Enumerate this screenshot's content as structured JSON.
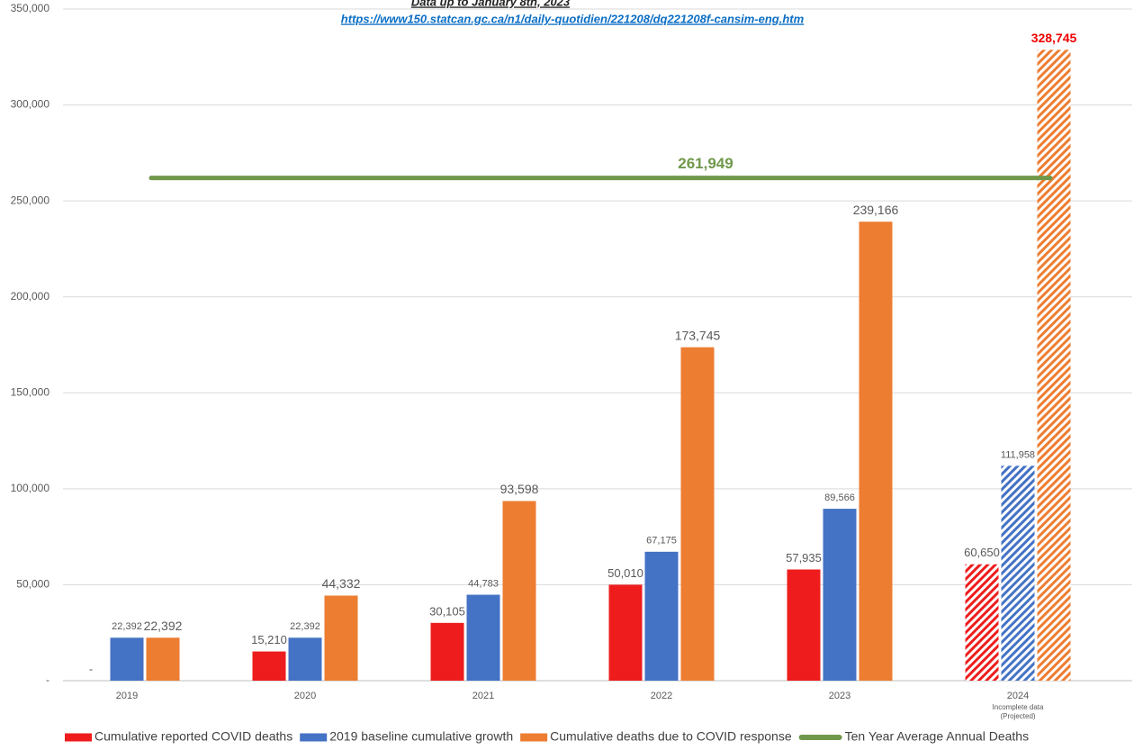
{
  "chart_data": {
    "type": "bar",
    "subtitle": "Data up to January 8th, 2023",
    "source_url": "https://www150.statcan.gc.ca/n1/daily-quotidien/221208/dq221208f-cansim-eng.htm",
    "categories": [
      "2019",
      "2020",
      "2021",
      "2022",
      "2023",
      "2024"
    ],
    "projected": [
      false,
      false,
      false,
      false,
      false,
      true
    ],
    "projected_note": [
      "Incomplete data",
      "(Projected)"
    ],
    "series": [
      {
        "name": "Cumulative reported COVID deaths",
        "color": "#ee1c1c",
        "values": [
          0,
          15210,
          30105,
          50010,
          57935,
          60650
        ],
        "value_labels": [
          "-",
          "15,210",
          "30,105",
          "50,010",
          "57,935",
          "60,650"
        ]
      },
      {
        "name": "2019 baseline cumulative growth",
        "color": "#4472c4",
        "values": [
          22392,
          22392,
          44783,
          67175,
          89566,
          111958
        ],
        "value_labels": [
          "22,392",
          "22,392",
          "44,783",
          "67,175",
          "89,566",
          "111,958"
        ]
      },
      {
        "name": "Cumulative deaths due to COVID response",
        "color": "#ed7d31",
        "values": [
          22392,
          44332,
          93598,
          173745,
          239166,
          328745
        ],
        "value_labels": [
          "22,392",
          "44,332",
          "93,598",
          "173,745",
          "239,166",
          "328,745"
        ]
      }
    ],
    "average": {
      "name": "Ten Year Average Annual Deaths",
      "color": "#70984b",
      "value": 261949,
      "label": "261,949"
    },
    "ylim": [
      0,
      350000
    ],
    "yticks": [
      {
        "value": 0,
        "label": "-"
      },
      {
        "value": 50000,
        "label": "50,000"
      },
      {
        "value": 100000,
        "label": "100,000"
      },
      {
        "value": 150000,
        "label": "150,000"
      },
      {
        "value": 200000,
        "label": "200,000"
      },
      {
        "value": 250000,
        "label": "250,000"
      },
      {
        "value": 300000,
        "label": "300,000"
      },
      {
        "value": 350000,
        "label": "350,000"
      }
    ],
    "grid": true
  }
}
